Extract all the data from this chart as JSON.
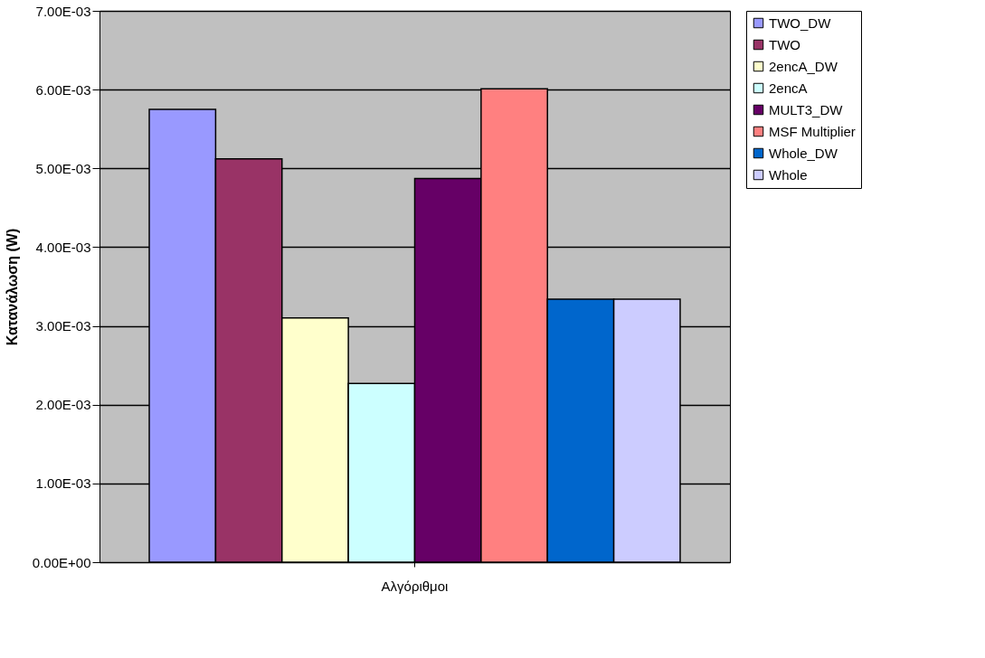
{
  "chart_data": {
    "type": "bar",
    "ylabel": "Κατανάλωση (W)",
    "categories": [
      "Αλγόριθμοι"
    ],
    "series": [
      {
        "name": "TWO_DW",
        "color": "#9999ff",
        "values": [
          0.00575
        ]
      },
      {
        "name": "TWO",
        "color": "#993366",
        "values": [
          0.00512
        ]
      },
      {
        "name": "2encA_DW",
        "color": "#ffffcc",
        "values": [
          0.0031
        ]
      },
      {
        "name": "2encA",
        "color": "#ccffff",
        "values": [
          0.00227
        ]
      },
      {
        "name": "MULT3_DW",
        "color": "#660066",
        "values": [
          0.00487
        ]
      },
      {
        "name": "MSF Multiplier",
        "color": "#ff8080",
        "values": [
          0.00601
        ]
      },
      {
        "name": "Whole_DW",
        "color": "#0066cc",
        "values": [
          0.00334
        ]
      },
      {
        "name": "Whole",
        "color": "#ccccff",
        "values": [
          0.00334
        ]
      }
    ],
    "ylim": [
      0,
      0.007
    ],
    "yticks": [
      {
        "value": 0,
        "label": "0.00E+00"
      },
      {
        "value": 0.001,
        "label": "1.00E-03"
      },
      {
        "value": 0.002,
        "label": "2.00E-03"
      },
      {
        "value": 0.003,
        "label": "3.00E-03"
      },
      {
        "value": 0.004,
        "label": "4.00E-03"
      },
      {
        "value": 0.005,
        "label": "5.00E-03"
      },
      {
        "value": 0.006,
        "label": "6.00E-03"
      },
      {
        "value": 0.007,
        "label": "7.00E-03"
      }
    ],
    "grid": "y",
    "legend": "right"
  }
}
